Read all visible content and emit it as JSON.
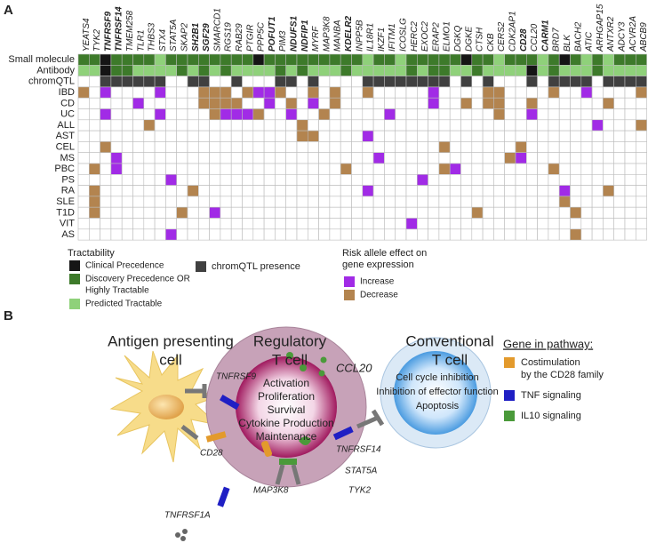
{
  "panel_a": {
    "label": "A",
    "genes": [
      {
        "name": "YEATS4"
      },
      {
        "name": "TYK2"
      },
      {
        "name": "TNFRSF9",
        "bold": true
      },
      {
        "name": "TNFRSF14",
        "bold": true
      },
      {
        "name": "TMEM258"
      },
      {
        "name": "TLR1"
      },
      {
        "name": "THBS3"
      },
      {
        "name": "STX4"
      },
      {
        "name": "STAT5A"
      },
      {
        "name": "SKAP2"
      },
      {
        "name": "SH2B1",
        "bold": true
      },
      {
        "name": "SGF29",
        "bold": true
      },
      {
        "name": "SMARCD1"
      },
      {
        "name": "RGS19"
      },
      {
        "name": "RAB29"
      },
      {
        "name": "PTGIR"
      },
      {
        "name": "PPP5C"
      },
      {
        "name": "POFUT1",
        "bold": true
      },
      {
        "name": "PIM3"
      },
      {
        "name": "NDUFS1",
        "bold": true
      },
      {
        "name": "NDFIP1",
        "bold": true
      },
      {
        "name": "MYRF"
      },
      {
        "name": "MAP3K8"
      },
      {
        "name": "MANBA"
      },
      {
        "name": "KDELR2",
        "bold": true
      },
      {
        "name": "INPP5B"
      },
      {
        "name": "IL18R1"
      },
      {
        "name": "IKZF1"
      },
      {
        "name": "IFITM1"
      },
      {
        "name": "ICOSLG"
      },
      {
        "name": "HERC2"
      },
      {
        "name": "EXOC2"
      },
      {
        "name": "ERAP2"
      },
      {
        "name": "ELMO1"
      },
      {
        "name": "DGKQ"
      },
      {
        "name": "DGKE"
      },
      {
        "name": "CTSH"
      },
      {
        "name": "CKB"
      },
      {
        "name": "CERS2"
      },
      {
        "name": "CDK2AP1"
      },
      {
        "name": "CD28",
        "bold": true
      },
      {
        "name": "CCL20"
      },
      {
        "name": "CARM1",
        "bold": true
      },
      {
        "name": "BRD7"
      },
      {
        "name": "BLK"
      },
      {
        "name": "BACH2"
      },
      {
        "name": "ATIC"
      },
      {
        "name": "ARHGAP15"
      },
      {
        "name": "ANTXR2"
      },
      {
        "name": "ADCY3"
      },
      {
        "name": "ACVR2A"
      },
      {
        "name": "ABCB9"
      }
    ],
    "tractability_rows": [
      {
        "label": "Small molecule",
        "cells": [
          "#3d7a2a",
          "#3d7a2a",
          "#151515",
          "#3d7a2a",
          "#3d7a2a",
          "#3d7a2a",
          "#3d7a2a",
          "#8fd17a",
          "#3d7a2a",
          "#3d7a2a",
          "#3d7a2a",
          "#3d7a2a",
          "#3d7a2a",
          "#3d7a2a",
          "#3d7a2a",
          "#3d7a2a",
          "#151515",
          "#3d7a2a",
          "#3d7a2a",
          "#3d7a2a",
          "#3d7a2a",
          "#3d7a2a",
          "#3d7a2a",
          "#3d7a2a",
          "#3d7a2a",
          "#3d7a2a",
          "#8fd17a",
          "#3d7a2a",
          "#3d7a2a",
          "#8fd17a",
          "#3d7a2a",
          "#3d7a2a",
          "#3d7a2a",
          "#3d7a2a",
          "#3d7a2a",
          "#151515",
          "#3d7a2a",
          "#3d7a2a",
          "#8fd17a",
          "#3d7a2a",
          "#3d7a2a",
          "#3d7a2a",
          "#8fd17a",
          "#3d7a2a",
          "#151515",
          "#3d7a2a",
          "#8fd17a",
          "#3d7a2a",
          "#8fd17a",
          "#3d7a2a",
          "#3d7a2a",
          "#3d7a2a"
        ]
      },
      {
        "label": "Antibody",
        "cells": [
          "#8fd17a",
          "#8fd17a",
          "#151515",
          "#3d7a2a",
          "#3d7a2a",
          "#8fd17a",
          "#8fd17a",
          "#8fd17a",
          "#8fd17a",
          "#3d7a2a",
          "#8fd17a",
          "#3d7a2a",
          "#8fd17a",
          "#3d7a2a",
          "#8fd17a",
          "#8fd17a",
          "#8fd17a",
          "#8fd17a",
          "#3d7a2a",
          "#8fd17a",
          "#3d7a2a",
          "#8fd17a",
          "#8fd17a",
          "#8fd17a",
          "#3d7a2a",
          "#8fd17a",
          "#8fd17a",
          "#8fd17a",
          "#8fd17a",
          "#8fd17a",
          "#3d7a2a",
          "#8fd17a",
          "#3d7a2a",
          "#3d7a2a",
          "#8fd17a",
          "#8fd17a",
          "#3d7a2a",
          "#8fd17a",
          "#8fd17a",
          "#8fd17a",
          "#8fd17a",
          "#151515",
          "#8fd17a",
          "#3d7a2a",
          "#8fd17a",
          "#8fd17a",
          "#8fd17a",
          "#3d7a2a",
          "#8fd17a",
          "#8fd17a",
          "#8fd17a",
          "#8fd17a"
        ]
      },
      {
        "label": "chromQTL",
        "cells": [
          null,
          null,
          "#404040",
          "#404040",
          "#404040",
          "#404040",
          "#404040",
          "#404040",
          null,
          null,
          "#404040",
          "#404040",
          null,
          null,
          "#404040",
          null,
          null,
          null,
          "#404040",
          "#404040",
          null,
          "#404040",
          null,
          null,
          null,
          null,
          "#404040",
          "#404040",
          "#404040",
          "#404040",
          "#404040",
          "#404040",
          "#404040",
          "#404040",
          null,
          "#404040",
          null,
          "#404040",
          null,
          null,
          null,
          "#404040",
          null,
          "#404040",
          "#404040",
          "#404040",
          "#404040",
          null,
          "#404040",
          "#404040",
          "#404040",
          "#404040"
        ]
      }
    ],
    "disease_rows": [
      {
        "label": "IBD",
        "increase": [
          "TNFRSF9",
          "STX4",
          "PPP5C",
          "POFUT1",
          "ERAP2",
          "ATIC"
        ],
        "decrease": [
          "YEATS4",
          "SGF29",
          "SMARCD1",
          "RGS19",
          "PTGIR",
          "PIM3",
          "MYRF",
          "MANBA",
          "IL18R1",
          "CKB",
          "CERS2",
          "BRD7",
          "ABCB9"
        ]
      },
      {
        "label": "CD",
        "increase": [
          "TLR1",
          "POFUT1",
          "MYRF",
          "ERAP2"
        ],
        "decrease": [
          "SGF29",
          "SMARCD1",
          "RGS19",
          "RAB29",
          "NDUFS1",
          "MANBA",
          "DGKE",
          "CKB",
          "CERS2",
          "CCL20",
          "ANTXR2"
        ]
      },
      {
        "label": "UC",
        "increase": [
          "TNFRSF9",
          "STX4",
          "RGS19",
          "RAB29",
          "PTGIR",
          "NDUFS1",
          "IFITM1",
          "CCL20"
        ],
        "decrease": [
          "SMARCD1",
          "PPP5C",
          "MAP3K8",
          "CERS2"
        ]
      },
      {
        "label": "ALL",
        "increase": [
          "ARHGAP15"
        ],
        "decrease": [
          "THBS3",
          "NDFIP1",
          "ABCB9"
        ]
      },
      {
        "label": "AST",
        "increase": [
          "IL18R1"
        ],
        "decrease": [
          "NDFIP1",
          "MYRF"
        ]
      },
      {
        "label": "CEL",
        "increase": [],
        "decrease": [
          "TNFRSF9",
          "ELMO1",
          "CD28"
        ]
      },
      {
        "label": "MS",
        "increase": [
          "TNFRSF14",
          "IKZF1",
          "CD28"
        ],
        "decrease": [
          "CDK2AP1"
        ]
      },
      {
        "label": "PBC",
        "increase": [
          "TNFRSF14",
          "DGKQ"
        ],
        "decrease": [
          "TYK2",
          "KDELR2",
          "ELMO1",
          "BRD7"
        ]
      },
      {
        "label": "PS",
        "increase": [
          "STAT5A",
          "EXOC2"
        ],
        "decrease": []
      },
      {
        "label": "RA",
        "increase": [
          "IL18R1",
          "BLK"
        ],
        "decrease": [
          "TYK2",
          "SH2B1",
          "ANTXR2"
        ]
      },
      {
        "label": "SLE",
        "increase": [],
        "decrease": [
          "TYK2",
          "BLK"
        ]
      },
      {
        "label": "T1D",
        "increase": [
          "SMARCD1"
        ],
        "decrease": [
          "TYK2",
          "SKAP2",
          "CTSH",
          "BACH2"
        ]
      },
      {
        "label": "VIT",
        "increase": [
          "HERC2"
        ],
        "decrease": []
      },
      {
        "label": "AS",
        "increase": [
          "STAT5A"
        ],
        "decrease": [
          "BACH2"
        ]
      }
    ],
    "legend": {
      "tractability": {
        "title": "Tractability",
        "items": [
          {
            "label": [
              "Clinical Precedence"
            ],
            "color": "#151515"
          },
          {
            "label": [
              "Discovery Precedence OR",
              "Highly Tractable"
            ],
            "color": "#3d7a2a"
          },
          {
            "label": [
              "Predicted Tractable"
            ],
            "color": "#8fd17a"
          }
        ]
      },
      "chromqtl": {
        "label": "chromQTL presence",
        "color": "#404040"
      },
      "risk": {
        "title": [
          "Risk allele effect on",
          "gene expression"
        ],
        "items": [
          {
            "label": "Increase",
            "color": "#a12be6"
          },
          {
            "label": "Decrease",
            "color": "#b3844f"
          }
        ]
      }
    }
  },
  "panel_b": {
    "label": "B",
    "apc": [
      "Antigen presenting",
      "cell"
    ],
    "treg": [
      "Regulatory",
      "T cell"
    ],
    "tconv": [
      "Conventional",
      "T cell"
    ],
    "ccl20": "CCL20",
    "treg_functions": [
      "Activation",
      "Proliferation",
      "Survival",
      "Cytokine Production",
      "Maintenance"
    ],
    "tconv_functions": [
      "Cell cycle inhibition",
      "Inhibition of effector function",
      "Apoptosis"
    ],
    "genes": {
      "tnfrsf9": "TNFRSF9",
      "cd28": "CD28",
      "tnfrsf14": "TNFRSF14",
      "stat5a": "STAT5A",
      "map3k8": "MAP3K8",
      "tyk2": "TYK2",
      "tnfrsf1a": "TNFRSF1A"
    },
    "legend": {
      "title": "Gene in pathway:",
      "items": [
        {
          "label": [
            "Costimulation",
            "by the CD28 family"
          ],
          "color": "#e39a2c"
        },
        {
          "label": [
            "TNF signaling"
          ],
          "color": "#1f1fc4"
        },
        {
          "label": [
            "IL10 signaling"
          ],
          "color": "#4a9a3a"
        }
      ]
    }
  }
}
